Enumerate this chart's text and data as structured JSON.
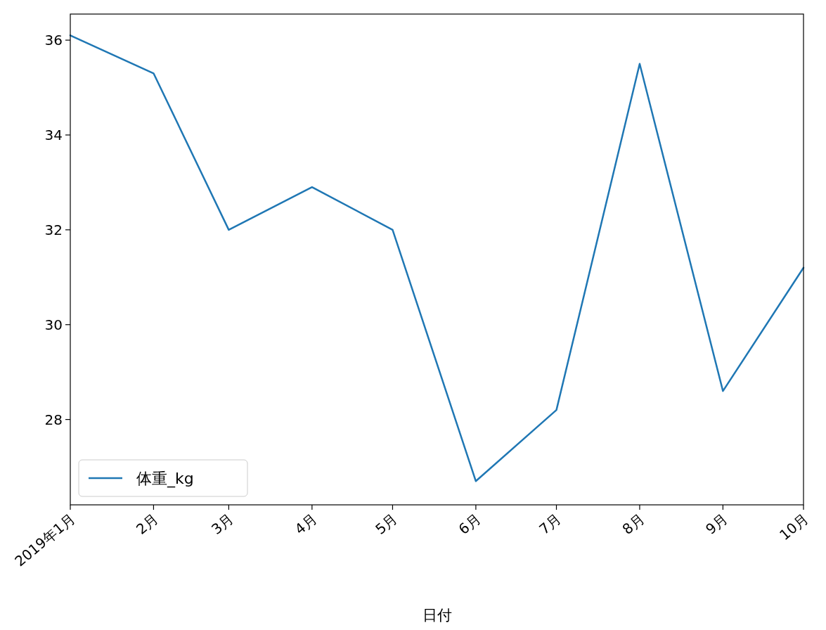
{
  "chart_data": {
    "type": "line",
    "x": [
      "2019-01",
      "2019-02",
      "2019-03",
      "2019-04",
      "2019-05",
      "2019-06",
      "2019-07",
      "2019-08",
      "2019-09",
      "2019-10"
    ],
    "series": [
      {
        "name": "体重_kg",
        "color": "#1f77b4",
        "values": [
          36.1,
          35.3,
          32.0,
          32.9,
          32.0,
          26.7,
          28.2,
          35.5,
          28.6,
          31.2
        ]
      }
    ],
    "xlim": [
      "2019-01",
      "2019-10"
    ],
    "xticks": [
      {
        "value": "2019-01",
        "label": "2019年1月"
      },
      {
        "value": "2019-02",
        "label": "2月"
      },
      {
        "value": "2019-03",
        "label": "3月"
      },
      {
        "value": "2019-04",
        "label": "4月"
      },
      {
        "value": "2019-05",
        "label": "5月"
      },
      {
        "value": "2019-06",
        "label": "6月"
      },
      {
        "value": "2019-07",
        "label": "7月"
      },
      {
        "value": "2019-08",
        "label": "8月"
      },
      {
        "value": "2019-09",
        "label": "9月"
      },
      {
        "value": "2019-10",
        "label": "10月"
      }
    ],
    "ylim": [
      26.2,
      36.55
    ],
    "yticks": [
      28,
      30,
      32,
      34,
      36
    ],
    "xlabel": "日付",
    "legend": "bottom left"
  }
}
